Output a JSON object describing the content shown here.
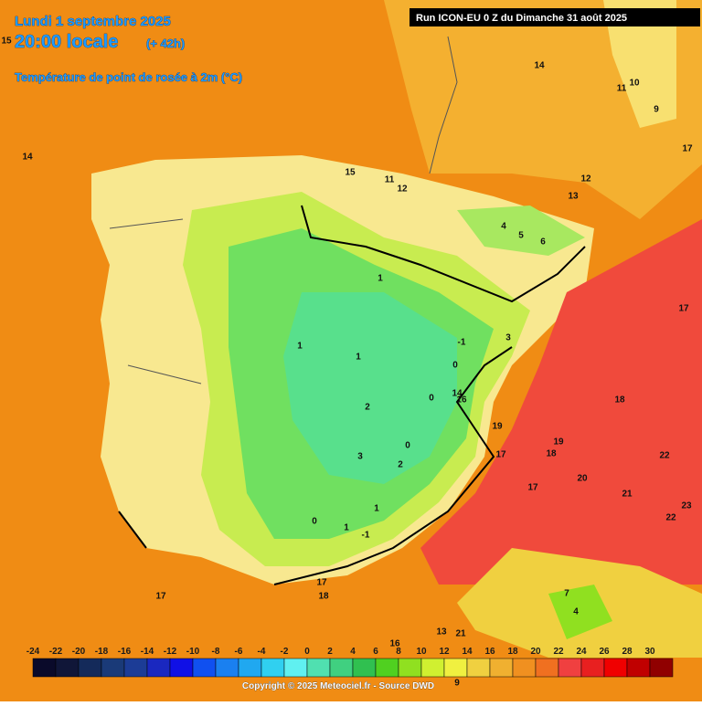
{
  "header": {
    "date": "Lundi 1 septembre 2025",
    "time": "20:00 locale",
    "lead": "(+ 42h)",
    "variable": "Température de point de rosée à 2m (°C)",
    "run": "Run ICON-EU 0 Z du Dimanche 31 août 2025"
  },
  "legend": {
    "ticks": [
      -24,
      -22,
      -20,
      -18,
      -16,
      -14,
      -12,
      -10,
      -8,
      -6,
      -4,
      -2,
      0,
      2,
      4,
      6,
      8,
      10,
      12,
      14,
      16,
      18,
      20,
      22,
      24,
      26,
      28,
      30
    ],
    "colors": [
      "#0a0a2a",
      "#101638",
      "#142a5a",
      "#1a3a78",
      "#1c3c96",
      "#1a28c0",
      "#1010e6",
      "#1050f0",
      "#1a80f0",
      "#20a8f0",
      "#30d0f0",
      "#60f0f0",
      "#50e0b0",
      "#40d080",
      "#30c050",
      "#50d020",
      "#90e020",
      "#d0f030",
      "#f0f040",
      "#f0d040",
      "#f0b030",
      "#f09020",
      "#f07020",
      "#f04040",
      "#e82020",
      "#f00000",
      "#c00000",
      "#900000"
    ]
  },
  "footer": {
    "copyright": "Copyright © 2025 Meteociel.fr - Source DWD"
  },
  "map": {
    "labels": [
      15,
      14,
      11,
      10,
      9,
      17,
      14,
      15,
      11,
      12,
      12,
      13,
      4,
      5,
      6,
      1,
      17,
      1,
      1,
      -1,
      3,
      0,
      0,
      14,
      16,
      18,
      2,
      19,
      19,
      18,
      17,
      22,
      0,
      3,
      2,
      20,
      17,
      21,
      23,
      22,
      1,
      0,
      1,
      -1,
      17,
      18,
      17,
      7,
      4,
      13,
      21,
      16,
      9
    ]
  }
}
